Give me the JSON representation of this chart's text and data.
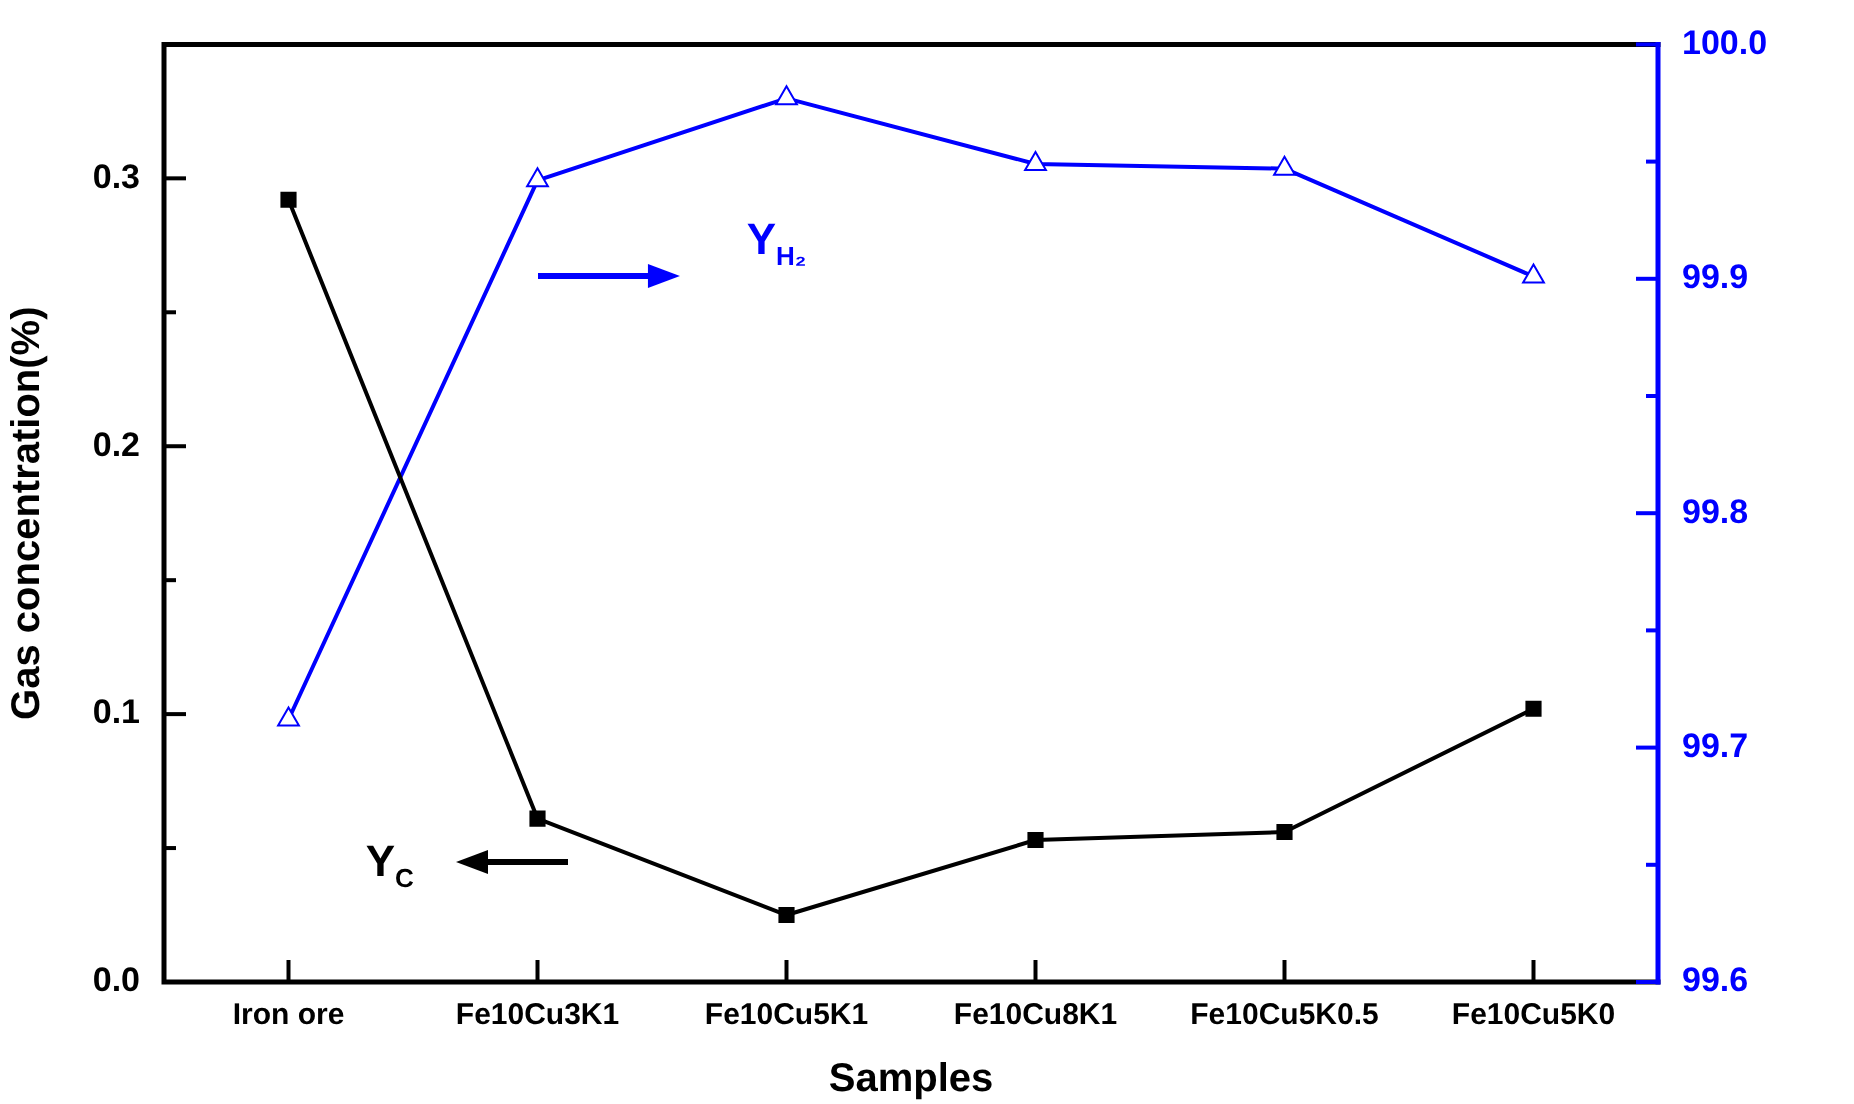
{
  "chart_data": {
    "type": "line",
    "xlabel": "Samples",
    "ylabel": "Gas concentration(%)",
    "categories": [
      "Iron ore",
      "Fe10Cu3K1",
      "Fe10Cu5K1",
      "Fe10Cu8K1",
      "Fe10Cu5K0.5",
      "Fe10Cu5K0"
    ],
    "ylim": [
      0,
      0.35
    ],
    "yticks": [
      {
        "value": 0,
        "label": "0.0"
      },
      {
        "value": 0.05,
        "label": null
      },
      0.1,
      {
        "value": 0.15,
        "label": null
      },
      0.2,
      {
        "value": 0.25,
        "label": null
      },
      0.3
    ],
    "y2lim": [
      99.6,
      100
    ],
    "y2ticks": [
      99.6,
      {
        "value": 99.65,
        "label": null
      },
      99.7,
      {
        "value": 99.75,
        "label": null
      },
      99.8,
      {
        "value": 99.85,
        "label": null
      },
      99.9,
      {
        "value": 99.95,
        "label": null
      },
      {
        "value": 100,
        "label": "100.0"
      }
    ],
    "series": [
      {
        "name": "Y$_{C}$",
        "color": "#000000",
        "marker": "square",
        "values": [
          0.292,
          0.061,
          0.025,
          0.053,
          0.056,
          0.102
        ]
      },
      {
        "name": "Y$_{H₂}$",
        "color": "#0000ff",
        "marker": "triangle",
        "axis": "y2",
        "values": [
          99.712,
          99.942,
          99.977,
          99.949,
          99.947,
          99.901
        ]
      }
    ]
  }
}
